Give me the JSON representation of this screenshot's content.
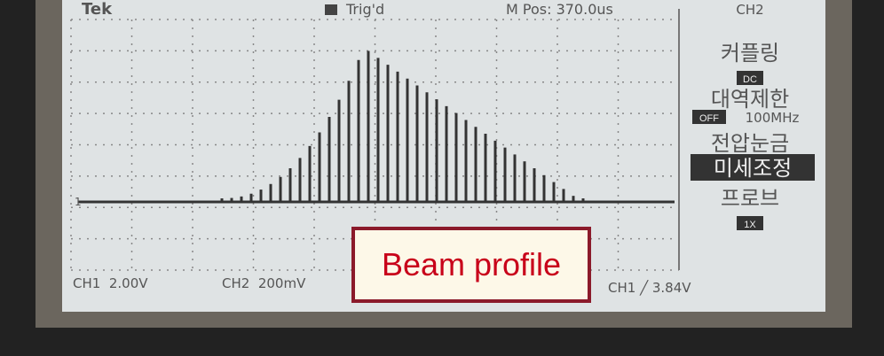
{
  "header": {
    "brand": "Tek",
    "trigger": "Trig'd",
    "position": "M Pos: 370.0us",
    "channel": "CH2"
  },
  "menu": [
    {
      "title": "커플링",
      "value": "DC"
    },
    {
      "title": "대역제한",
      "value": "OFF",
      "extra": "100MHz"
    },
    {
      "title": "전압눈금",
      "value": "미세조정"
    },
    {
      "title": "프로브",
      "value": "1X"
    }
  ],
  "marker": "1",
  "footer": {
    "ch1": "CH1  2.00V",
    "ch2": "CH2  200mV",
    "trigger": "CH1 ╱ 3.84V"
  },
  "label": "Beam profile"
}
